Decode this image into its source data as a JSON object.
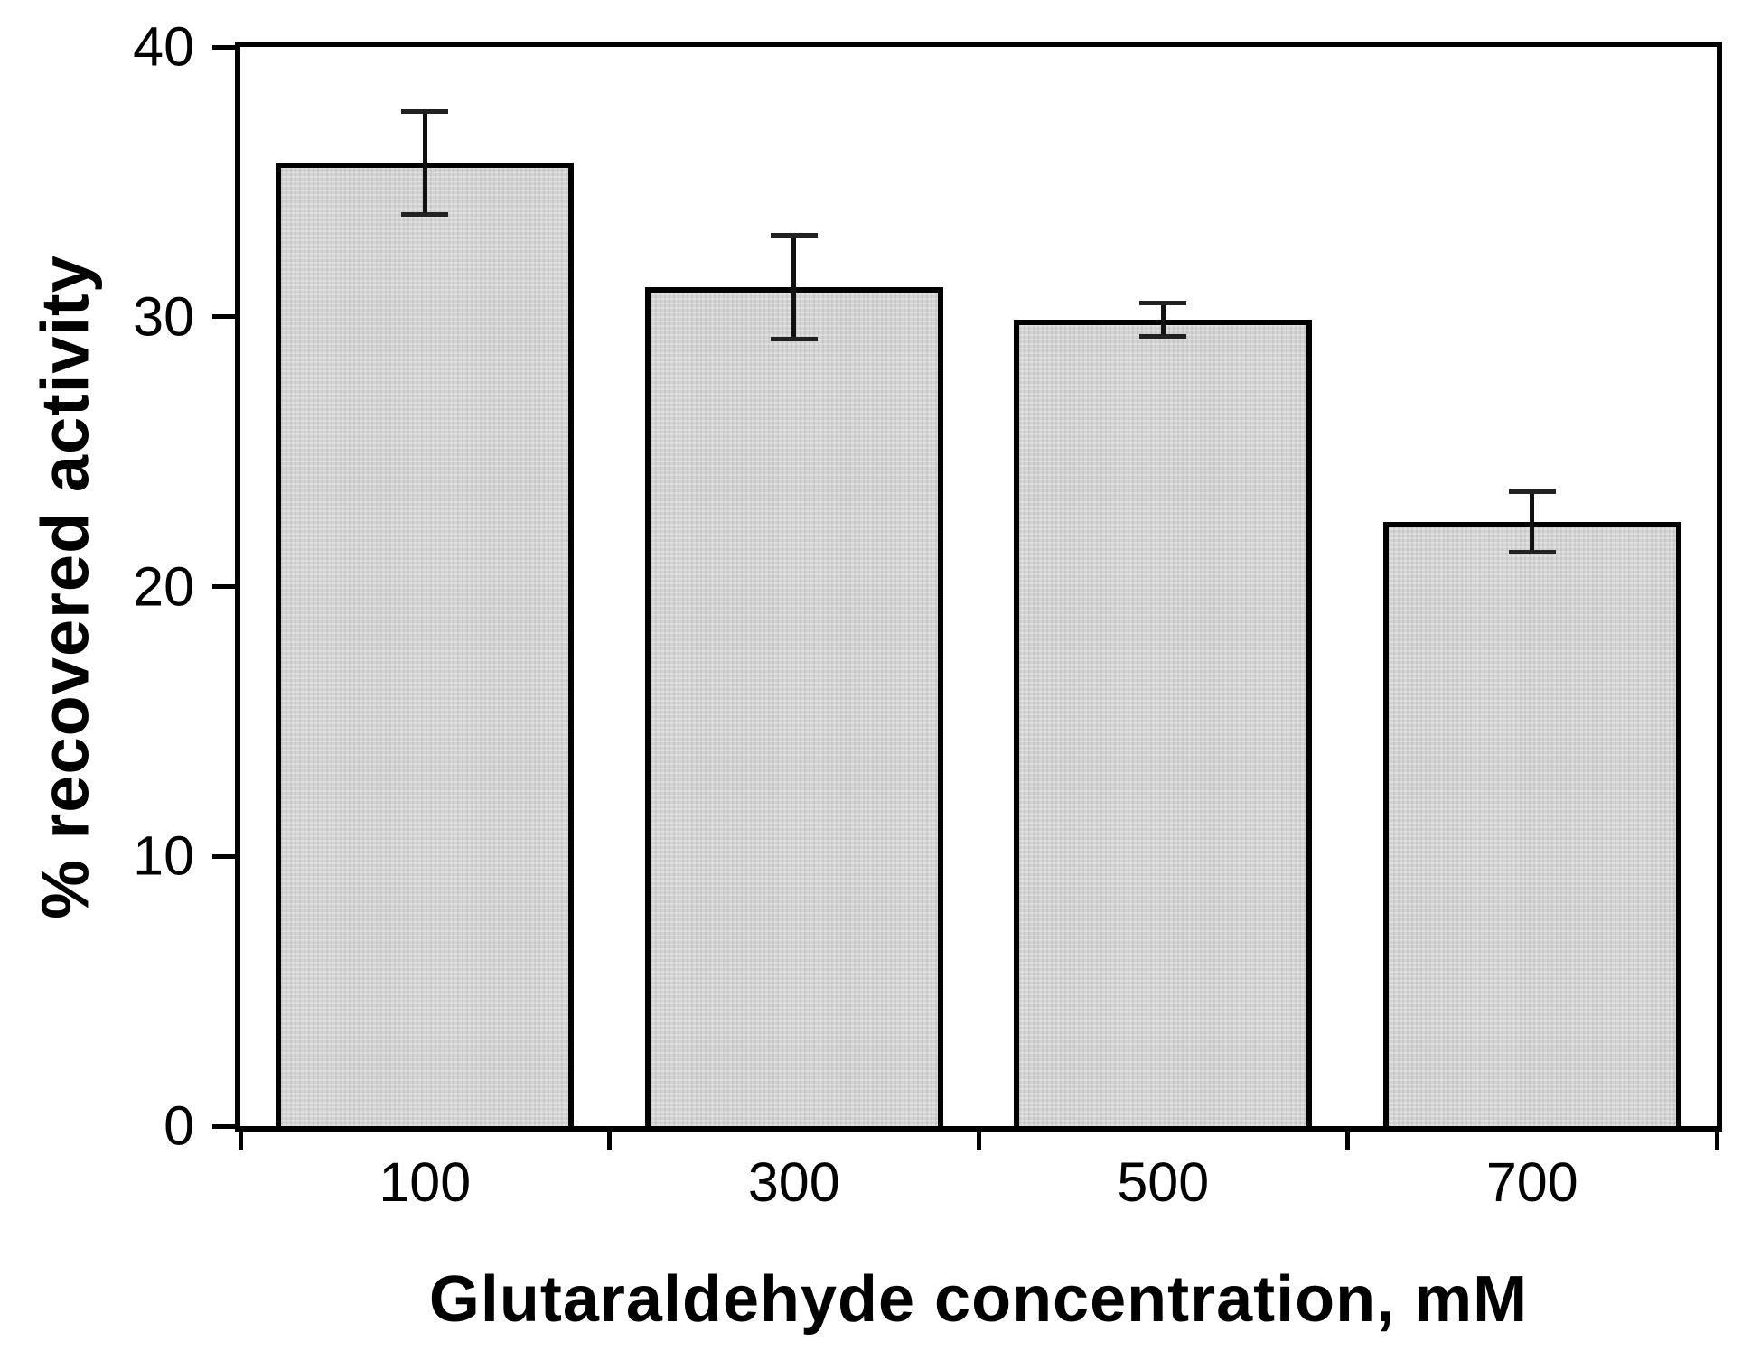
{
  "chart_data": {
    "type": "bar",
    "title": "",
    "xlabel": "Glutaraldehyde concentration, mM",
    "ylabel": "% recovered activity",
    "categories": [
      "100",
      "300",
      "500",
      "700"
    ],
    "values": [
      35.7,
      31.1,
      29.9,
      22.4
    ],
    "error_bars_plus_minus": [
      2.0,
      2.0,
      0.7,
      1.2
    ],
    "ylim": [
      0,
      40
    ],
    "yticks": [
      "0",
      "10",
      "20",
      "30",
      "40"
    ],
    "grid": false,
    "legend": null,
    "frame": "full-box",
    "bar_fill_color": "#d3d3d3",
    "bar_edge_color": "#000000",
    "error_bar_color": "#111111",
    "background_color": "#ffffff"
  }
}
